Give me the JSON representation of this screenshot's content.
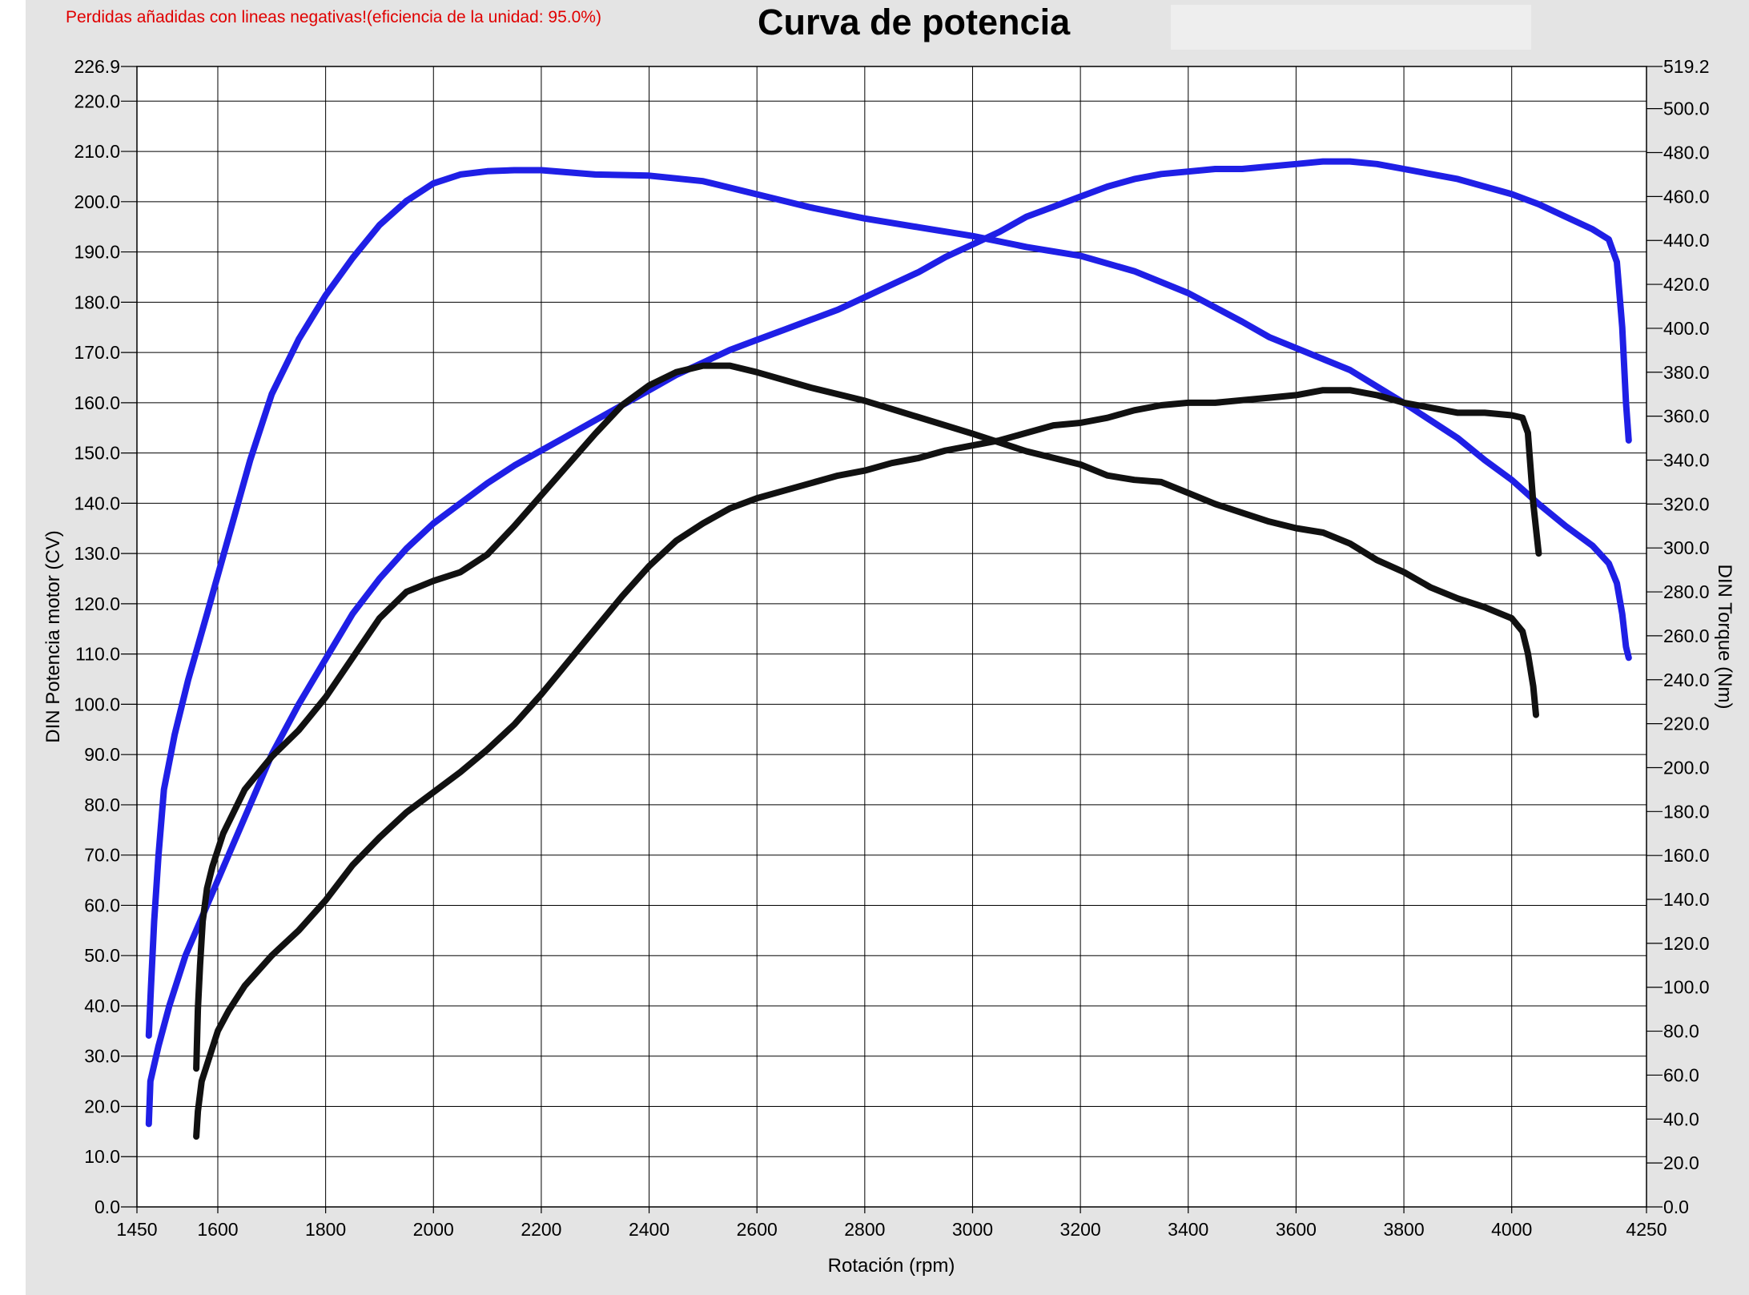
{
  "header": {
    "warning": "Perdidas añadidas con lineas negativas!(eficiencia de la unidad: 95.0%)",
    "title": "Curva de potencia"
  },
  "chart_data": {
    "type": "line",
    "title": "Curva de potencia",
    "xlabel": "Rotación (rpm)",
    "ylabel": "DIN Potencia motor (CV)",
    "y2label": "DIN Torque (Nm)",
    "xlim": [
      1450,
      4250
    ],
    "ylim": [
      0,
      226.9
    ],
    "y2lim": [
      0,
      519.2
    ],
    "grid": true,
    "x_ticks": [
      "1450",
      "1600",
      "1800",
      "2000",
      "2200",
      "2400",
      "2600",
      "2800",
      "3000",
      "3200",
      "3400",
      "3600",
      "3800",
      "4000",
      "4250"
    ],
    "y_ticks": [
      "0.0",
      "10.0",
      "20.0",
      "30.0",
      "40.0",
      "50.0",
      "60.0",
      "70.0",
      "80.0",
      "90.0",
      "100.0",
      "110.0",
      "120.0",
      "130.0",
      "140.0",
      "150.0",
      "160.0",
      "170.0",
      "180.0",
      "190.0",
      "200.0",
      "210.0",
      "220.0",
      "226.9"
    ],
    "y2_ticks": [
      "0.0",
      "20.0",
      "40.0",
      "60.0",
      "80.0",
      "100.0",
      "120.0",
      "140.0",
      "160.0",
      "180.0",
      "200.0",
      "220.0",
      "240.0",
      "260.0",
      "280.0",
      "300.0",
      "320.0",
      "340.0",
      "360.0",
      "380.0",
      "400.0",
      "420.0",
      "440.0",
      "460.0",
      "480.0",
      "500.0",
      "519.2"
    ],
    "series": [
      {
        "role": "power-tuned",
        "axis": "y",
        "color": "#1f1fe6",
        "points": [
          [
            1472,
            16.5
          ],
          [
            1475,
            25
          ],
          [
            1490,
            32
          ],
          [
            1510,
            40
          ],
          [
            1540,
            50
          ],
          [
            1580,
            60
          ],
          [
            1620,
            70
          ],
          [
            1660,
            80
          ],
          [
            1700,
            90
          ],
          [
            1750,
            100
          ],
          [
            1800,
            109
          ],
          [
            1850,
            118
          ],
          [
            1900,
            125
          ],
          [
            1950,
            131
          ],
          [
            2000,
            136
          ],
          [
            2050,
            140
          ],
          [
            2100,
            144
          ],
          [
            2150,
            147.5
          ],
          [
            2200,
            150.5
          ],
          [
            2250,
            153.5
          ],
          [
            2300,
            156.5
          ],
          [
            2350,
            159.5
          ],
          [
            2400,
            162.5
          ],
          [
            2450,
            165.5
          ],
          [
            2500,
            168
          ],
          [
            2550,
            170.5
          ],
          [
            2600,
            172.5
          ],
          [
            2650,
            174.5
          ],
          [
            2700,
            176.5
          ],
          [
            2750,
            178.5
          ],
          [
            2800,
            181
          ],
          [
            2850,
            183.5
          ],
          [
            2900,
            186
          ],
          [
            2950,
            189
          ],
          [
            3000,
            191.5
          ],
          [
            3050,
            194
          ],
          [
            3100,
            197
          ],
          [
            3150,
            199
          ],
          [
            3200,
            201
          ],
          [
            3250,
            203
          ],
          [
            3300,
            204.5
          ],
          [
            3350,
            205.5
          ],
          [
            3400,
            206
          ],
          [
            3450,
            206.5
          ],
          [
            3500,
            206.5
          ],
          [
            3550,
            207
          ],
          [
            3600,
            207.5
          ],
          [
            3650,
            208
          ],
          [
            3700,
            208
          ],
          [
            3750,
            207.5
          ],
          [
            3800,
            206.5
          ],
          [
            3850,
            205.5
          ],
          [
            3900,
            204.5
          ],
          [
            3950,
            203
          ],
          [
            4000,
            201.5
          ],
          [
            4050,
            199.5
          ],
          [
            4100,
            197
          ],
          [
            4150,
            194.5
          ],
          [
            4180,
            192.5
          ],
          [
            4195,
            188
          ],
          [
            4205,
            175
          ],
          [
            4212,
            160
          ],
          [
            4217,
            152.5
          ]
        ]
      },
      {
        "role": "torque-tuned",
        "axis": "y2",
        "color": "#1f1fe6",
        "points": [
          [
            1472,
            78
          ],
          [
            1476,
            100
          ],
          [
            1482,
            130
          ],
          [
            1490,
            160
          ],
          [
            1500,
            190
          ],
          [
            1520,
            215
          ],
          [
            1545,
            240
          ],
          [
            1580,
            270
          ],
          [
            1620,
            305
          ],
          [
            1660,
            340
          ],
          [
            1700,
            370
          ],
          [
            1750,
            395
          ],
          [
            1800,
            415
          ],
          [
            1850,
            432
          ],
          [
            1900,
            447
          ],
          [
            1950,
            458
          ],
          [
            2000,
            466
          ],
          [
            2050,
            470
          ],
          [
            2100,
            471.5
          ],
          [
            2150,
            472
          ],
          [
            2200,
            472
          ],
          [
            2300,
            470
          ],
          [
            2400,
            469.5
          ],
          [
            2500,
            467
          ],
          [
            2600,
            461
          ],
          [
            2700,
            455
          ],
          [
            2800,
            450
          ],
          [
            2900,
            446
          ],
          [
            3000,
            442
          ],
          [
            3100,
            437
          ],
          [
            3200,
            433
          ],
          [
            3300,
            426
          ],
          [
            3400,
            416
          ],
          [
            3500,
            403
          ],
          [
            3550,
            396
          ],
          [
            3600,
            391
          ],
          [
            3700,
            381
          ],
          [
            3800,
            366
          ],
          [
            3900,
            350
          ],
          [
            3950,
            340
          ],
          [
            4000,
            331
          ],
          [
            4050,
            320
          ],
          [
            4100,
            310
          ],
          [
            4150,
            301
          ],
          [
            4180,
            293
          ],
          [
            4195,
            284
          ],
          [
            4205,
            270
          ],
          [
            4212,
            255
          ],
          [
            4217,
            250
          ]
        ]
      },
      {
        "role": "power-stock",
        "axis": "y",
        "color": "#111111",
        "points": [
          [
            1560,
            14
          ],
          [
            1563,
            19
          ],
          [
            1570,
            25
          ],
          [
            1585,
            30
          ],
          [
            1600,
            35
          ],
          [
            1620,
            39
          ],
          [
            1650,
            44
          ],
          [
            1700,
            50
          ],
          [
            1750,
            55
          ],
          [
            1800,
            61
          ],
          [
            1850,
            68
          ],
          [
            1900,
            73.5
          ],
          [
            1950,
            78.5
          ],
          [
            2000,
            82.5
          ],
          [
            2050,
            86.5
          ],
          [
            2100,
            91
          ],
          [
            2150,
            96
          ],
          [
            2200,
            102
          ],
          [
            2250,
            108.5
          ],
          [
            2300,
            115
          ],
          [
            2350,
            121.5
          ],
          [
            2400,
            127.5
          ],
          [
            2450,
            132.5
          ],
          [
            2500,
            136
          ],
          [
            2550,
            139
          ],
          [
            2600,
            141
          ],
          [
            2650,
            142.5
          ],
          [
            2700,
            144
          ],
          [
            2750,
            145.5
          ],
          [
            2800,
            146.5
          ],
          [
            2850,
            148
          ],
          [
            2900,
            149
          ],
          [
            2950,
            150.5
          ],
          [
            3000,
            151.5
          ],
          [
            3050,
            152.5
          ],
          [
            3100,
            154
          ],
          [
            3150,
            155.5
          ],
          [
            3200,
            156
          ],
          [
            3250,
            157
          ],
          [
            3300,
            158.5
          ],
          [
            3350,
            159.5
          ],
          [
            3400,
            160
          ],
          [
            3450,
            160
          ],
          [
            3500,
            160.5
          ],
          [
            3550,
            161
          ],
          [
            3600,
            161.5
          ],
          [
            3650,
            162.5
          ],
          [
            3700,
            162.5
          ],
          [
            3750,
            161.5
          ],
          [
            3800,
            160
          ],
          [
            3850,
            159
          ],
          [
            3900,
            158
          ],
          [
            3950,
            158
          ],
          [
            4000,
            157.5
          ],
          [
            4020,
            157
          ],
          [
            4030,
            154
          ],
          [
            4040,
            140
          ],
          [
            4050,
            130
          ]
        ]
      },
      {
        "role": "torque-stock",
        "axis": "y2",
        "color": "#111111",
        "points": [
          [
            1560,
            63
          ],
          [
            1563,
            90
          ],
          [
            1567,
            110
          ],
          [
            1572,
            130
          ],
          [
            1580,
            145
          ],
          [
            1590,
            155
          ],
          [
            1610,
            170
          ],
          [
            1650,
            190
          ],
          [
            1700,
            205
          ],
          [
            1750,
            217
          ],
          [
            1800,
            232
          ],
          [
            1850,
            250
          ],
          [
            1900,
            268
          ],
          [
            1950,
            280
          ],
          [
            2000,
            285
          ],
          [
            2050,
            289
          ],
          [
            2100,
            297
          ],
          [
            2150,
            310
          ],
          [
            2200,
            324
          ],
          [
            2250,
            338
          ],
          [
            2300,
            352
          ],
          [
            2350,
            365
          ],
          [
            2400,
            374
          ],
          [
            2450,
            380
          ],
          [
            2500,
            383
          ],
          [
            2550,
            383
          ],
          [
            2600,
            380
          ],
          [
            2700,
            373
          ],
          [
            2800,
            367
          ],
          [
            2900,
            359.5
          ],
          [
            3000,
            352
          ],
          [
            3100,
            344
          ],
          [
            3200,
            338
          ],
          [
            3250,
            333
          ],
          [
            3300,
            331
          ],
          [
            3350,
            330
          ],
          [
            3400,
            325
          ],
          [
            3450,
            320
          ],
          [
            3500,
            316
          ],
          [
            3550,
            312
          ],
          [
            3600,
            309
          ],
          [
            3650,
            307
          ],
          [
            3700,
            302
          ],
          [
            3750,
            294.5
          ],
          [
            3800,
            289
          ],
          [
            3850,
            282
          ],
          [
            3900,
            277
          ],
          [
            3950,
            273
          ],
          [
            4000,
            268
          ],
          [
            4020,
            262
          ],
          [
            4030,
            252
          ],
          [
            4040,
            237
          ],
          [
            4045,
            224
          ]
        ]
      }
    ]
  }
}
